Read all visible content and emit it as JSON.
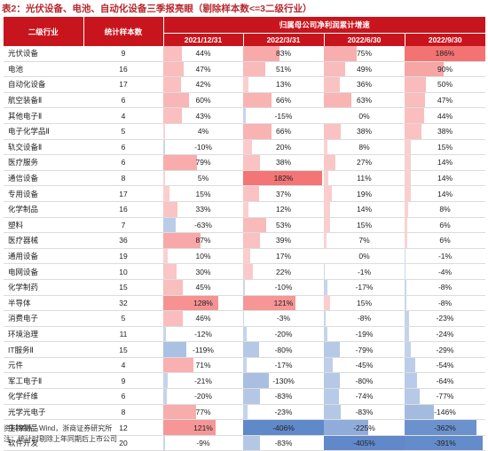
{
  "title": "表2：光伏设备、电池、自动化设备三季报亮眼（剔除样本数<=3二级行业）",
  "headers": {
    "industry": "二级行业",
    "count": "统计样本数",
    "group": "归属母公司净利润累计增速",
    "periods": [
      "2021/12/31",
      "2022/3/31",
      "2022/6/30",
      "2022/9/30"
    ]
  },
  "colors": {
    "header": "#c8151d",
    "positive": "#f15a5a",
    "negative": "#4f7cc4"
  },
  "rows": [
    {
      "industry": "光伏设备",
      "count": "9",
      "v": [
        "44%",
        "83%",
        "75%",
        "186%"
      ],
      "n": [
        44,
        83,
        75,
        186
      ]
    },
    {
      "industry": "电池",
      "count": "16",
      "v": [
        "47%",
        "51%",
        "49%",
        "90%"
      ],
      "n": [
        47,
        51,
        49,
        90
      ]
    },
    {
      "industry": "自动化设备",
      "count": "17",
      "v": [
        "42%",
        "13%",
        "36%",
        "50%"
      ],
      "n": [
        42,
        13,
        36,
        50
      ]
    },
    {
      "industry": "航空装备Ⅱ",
      "count": "6",
      "v": [
        "60%",
        "66%",
        "63%",
        "47%"
      ],
      "n": [
        60,
        66,
        63,
        47
      ]
    },
    {
      "industry": "其他电子Ⅱ",
      "count": "4",
      "v": [
        "43%",
        "-15%",
        "0%",
        "44%"
      ],
      "n": [
        43,
        -15,
        0,
        44
      ]
    },
    {
      "industry": "电子化学品Ⅱ",
      "count": "5",
      "v": [
        "4%",
        "66%",
        "38%",
        "38%"
      ],
      "n": [
        4,
        66,
        38,
        38
      ]
    },
    {
      "industry": "轨交设备Ⅱ",
      "count": "6",
      "v": [
        "-10%",
        "20%",
        "8%",
        "15%"
      ],
      "n": [
        -10,
        20,
        8,
        15
      ]
    },
    {
      "industry": "医疗服务",
      "count": "6",
      "v": [
        "79%",
        "38%",
        "27%",
        "14%"
      ],
      "n": [
        79,
        38,
        27,
        14
      ]
    },
    {
      "industry": "通信设备",
      "count": "8",
      "v": [
        "5%",
        "182%",
        "11%",
        "14%"
      ],
      "n": [
        5,
        182,
        11,
        14
      ]
    },
    {
      "industry": "专用设备",
      "count": "17",
      "v": [
        "15%",
        "37%",
        "19%",
        "14%"
      ],
      "n": [
        15,
        37,
        19,
        14
      ]
    },
    {
      "industry": "化学制品",
      "count": "16",
      "v": [
        "33%",
        "12%",
        "14%",
        "8%"
      ],
      "n": [
        33,
        12,
        14,
        8
      ]
    },
    {
      "industry": "塑料",
      "count": "7",
      "v": [
        "-63%",
        "53%",
        "15%",
        "6%"
      ],
      "n": [
        -63,
        53,
        15,
        6
      ]
    },
    {
      "industry": "医疗器械",
      "count": "36",
      "v": [
        "87%",
        "39%",
        "7%",
        "6%"
      ],
      "n": [
        87,
        39,
        7,
        6
      ]
    },
    {
      "industry": "通用设备",
      "count": "19",
      "v": [
        "10%",
        "17%",
        "0%",
        "-1%"
      ],
      "n": [
        10,
        17,
        0,
        -1
      ]
    },
    {
      "industry": "电网设备",
      "count": "10",
      "v": [
        "30%",
        "22%",
        "-1%",
        "-4%"
      ],
      "n": [
        30,
        22,
        -1,
        -4
      ]
    },
    {
      "industry": "化学制药",
      "count": "15",
      "v": [
        "45%",
        "-10%",
        "-17%",
        "-8%"
      ],
      "n": [
        45,
        -10,
        -17,
        -8
      ]
    },
    {
      "industry": "半导体",
      "count": "32",
      "v": [
        "128%",
        "121%",
        "15%",
        "-8%"
      ],
      "n": [
        128,
        121,
        15,
        -8
      ]
    },
    {
      "industry": "消费电子",
      "count": "5",
      "v": [
        "46%",
        "-3%",
        "-8%",
        "-23%"
      ],
      "n": [
        46,
        -3,
        -8,
        -23
      ]
    },
    {
      "industry": "环境治理",
      "count": "11",
      "v": [
        "-12%",
        "-20%",
        "-19%",
        "-24%"
      ],
      "n": [
        -12,
        -20,
        -19,
        -24
      ]
    },
    {
      "industry": "IT服务Ⅱ",
      "count": "15",
      "v": [
        "-119%",
        "-80%",
        "-79%",
        "-29%"
      ],
      "n": [
        -119,
        -80,
        -79,
        -29
      ]
    },
    {
      "industry": "元件",
      "count": "4",
      "v": [
        "71%",
        "-17%",
        "-45%",
        "-54%"
      ],
      "n": [
        71,
        -17,
        -45,
        -54
      ]
    },
    {
      "industry": "军工电子Ⅱ",
      "count": "9",
      "v": [
        "-21%",
        "-130%",
        "-80%",
        "-64%"
      ],
      "n": [
        -21,
        -130,
        -80,
        -64
      ]
    },
    {
      "industry": "化学纤维",
      "count": "6",
      "v": [
        "-20%",
        "-83%",
        "-74%",
        "-77%"
      ],
      "n": [
        -20,
        -83,
        -74,
        -77
      ]
    },
    {
      "industry": "光学光电子",
      "count": "8",
      "v": [
        "77%",
        "-23%",
        "-83%",
        "-146%"
      ],
      "n": [
        77,
        -23,
        -83,
        -146
      ]
    },
    {
      "industry": "生物制品",
      "count": "12",
      "v": [
        "121%",
        "-406%",
        "-225%",
        "-362%"
      ],
      "n": [
        121,
        -406,
        -225,
        -362
      ]
    },
    {
      "industry": "软件开发",
      "count": "20",
      "v": [
        "-9%",
        "-83%",
        "-405%",
        "-391%"
      ],
      "n": [
        -9,
        -83,
        -405,
        -391
      ]
    }
  ],
  "footer": {
    "source": "资料来源：Wind，浙商证券研究所",
    "note": "注：统计时剔除上年同期后上市公司"
  }
}
